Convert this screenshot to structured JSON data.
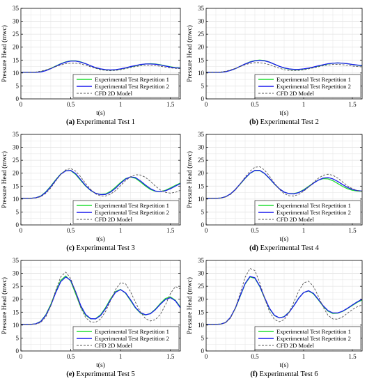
{
  "figure": {
    "legend_labels": [
      "Experimental Test Repetition 1",
      "Experimental Test Repetition 2",
      "CFD 2D Model"
    ],
    "colors": {
      "rep1": "#22dd33",
      "rep2": "#1a1aee",
      "cfd": "#555555",
      "grid": "#e3e3e3",
      "axis": "#000000"
    }
  },
  "chart_data": [
    {
      "type": "line",
      "caption_letter": "(a)",
      "caption_text": "Experimental Test 1",
      "xlabel": "t(s)",
      "ylabel": "Pressure Head (mwc)",
      "xlim": [
        0,
        1.6
      ],
      "ylim": [
        0,
        35
      ],
      "xticks": [
        0,
        0.5,
        1,
        1.5
      ],
      "yticks": [
        0,
        5,
        10,
        15,
        20,
        25,
        30,
        35
      ],
      "grid": true,
      "legend_position": "lower-right",
      "x": [
        0,
        0.05,
        0.1,
        0.15,
        0.2,
        0.25,
        0.3,
        0.35,
        0.4,
        0.45,
        0.5,
        0.55,
        0.6,
        0.65,
        0.7,
        0.75,
        0.8,
        0.85,
        0.9,
        0.95,
        1.0,
        1.05,
        1.1,
        1.15,
        1.2,
        1.25,
        1.3,
        1.35,
        1.4,
        1.45,
        1.5,
        1.55,
        1.6
      ],
      "series": [
        {
          "name": "Experimental Test Repetition 1",
          "values": [
            10.3,
            10.3,
            10.3,
            10.3,
            10.5,
            11.0,
            11.8,
            12.7,
            13.6,
            14.3,
            14.7,
            14.7,
            14.3,
            13.6,
            12.8,
            12.0,
            11.5,
            11.2,
            11.1,
            11.2,
            11.5,
            11.9,
            12.4,
            12.8,
            13.2,
            13.5,
            13.6,
            13.5,
            13.2,
            12.8,
            12.4,
            12.1,
            12.0
          ]
        },
        {
          "name": "Experimental Test Repetition 2",
          "values": [
            10.3,
            10.3,
            10.3,
            10.3,
            10.4,
            10.9,
            11.7,
            12.6,
            13.5,
            14.2,
            14.6,
            14.6,
            14.2,
            13.6,
            12.8,
            12.1,
            11.6,
            11.3,
            11.2,
            11.3,
            11.6,
            12.0,
            12.5,
            12.9,
            13.3,
            13.5,
            13.5,
            13.4,
            13.1,
            12.7,
            12.3,
            12.0,
            11.9
          ]
        },
        {
          "name": "CFD 2D Model",
          "values": [
            10.3,
            10.3,
            10.3,
            10.4,
            10.7,
            11.2,
            11.8,
            12.5,
            13.1,
            13.6,
            13.8,
            13.8,
            13.5,
            13.0,
            12.4,
            11.8,
            11.3,
            11.0,
            10.9,
            11.0,
            11.3,
            11.7,
            12.1,
            12.5,
            12.8,
            13.0,
            13.0,
            12.9,
            12.6,
            12.3,
            12.0,
            11.8,
            11.7
          ]
        }
      ]
    },
    {
      "type": "line",
      "caption_letter": "(b)",
      "caption_text": "Experimental Test 2",
      "xlabel": "t(s)",
      "ylabel": "Pressure Head (mwc)",
      "xlim": [
        0,
        1.6
      ],
      "ylim": [
        0,
        35
      ],
      "xticks": [
        0,
        0.5,
        1,
        1.5
      ],
      "yticks": [
        0,
        5,
        10,
        15,
        20,
        25,
        30,
        35
      ],
      "grid": true,
      "legend_position": "lower-right",
      "x": [
        0,
        0.05,
        0.1,
        0.15,
        0.2,
        0.25,
        0.3,
        0.35,
        0.4,
        0.45,
        0.5,
        0.55,
        0.6,
        0.65,
        0.7,
        0.75,
        0.8,
        0.85,
        0.9,
        0.95,
        1.0,
        1.05,
        1.1,
        1.15,
        1.2,
        1.25,
        1.3,
        1.35,
        1.4,
        1.45,
        1.5,
        1.55,
        1.6
      ],
      "series": [
        {
          "name": "Experimental Test Repetition 1",
          "values": [
            10.3,
            10.3,
            10.3,
            10.3,
            10.5,
            11.0,
            11.7,
            12.6,
            13.5,
            14.3,
            14.8,
            15.0,
            14.8,
            14.2,
            13.4,
            12.6,
            11.9,
            11.5,
            11.3,
            11.3,
            11.5,
            11.8,
            12.2,
            12.7,
            13.1,
            13.5,
            13.8,
            13.9,
            13.8,
            13.6,
            13.3,
            13.0,
            12.8
          ]
        },
        {
          "name": "Experimental Test Repetition 2",
          "values": [
            10.3,
            10.3,
            10.3,
            10.3,
            10.5,
            11.0,
            11.7,
            12.6,
            13.5,
            14.2,
            14.7,
            14.9,
            14.7,
            14.2,
            13.4,
            12.6,
            12.0,
            11.6,
            11.4,
            11.4,
            11.6,
            11.9,
            12.3,
            12.8,
            13.2,
            13.6,
            13.8,
            13.9,
            13.8,
            13.6,
            13.3,
            13.1,
            12.9
          ]
        },
        {
          "name": "CFD 2D Model",
          "values": [
            10.3,
            10.3,
            10.3,
            10.4,
            10.7,
            11.2,
            11.8,
            12.5,
            13.2,
            13.7,
            14.0,
            14.0,
            13.7,
            13.2,
            12.5,
            11.9,
            11.3,
            11.0,
            10.9,
            11.0,
            11.2,
            11.6,
            12.0,
            12.4,
            12.8,
            13.1,
            13.3,
            13.3,
            13.2,
            13.0,
            12.7,
            12.5,
            12.4
          ]
        }
      ]
    },
    {
      "type": "line",
      "caption_letter": "(c)",
      "caption_text": "Experimental Test 3",
      "xlabel": "t(s)",
      "ylabel": "Pressure Head (mwc)",
      "xlim": [
        0,
        1.6
      ],
      "ylim": [
        0,
        35
      ],
      "xticks": [
        0,
        0.5,
        1,
        1.5
      ],
      "yticks": [
        0,
        5,
        10,
        15,
        20,
        25,
        30,
        35
      ],
      "grid": true,
      "legend_position": "lower-right",
      "x": [
        0,
        0.05,
        0.1,
        0.15,
        0.2,
        0.25,
        0.3,
        0.35,
        0.4,
        0.45,
        0.5,
        0.55,
        0.6,
        0.65,
        0.7,
        0.75,
        0.8,
        0.85,
        0.9,
        0.95,
        1.0,
        1.05,
        1.1,
        1.15,
        1.2,
        1.25,
        1.3,
        1.35,
        1.4,
        1.45,
        1.5,
        1.55,
        1.6
      ],
      "series": [
        {
          "name": "Experimental Test Repetition 1",
          "values": [
            10.3,
            10.3,
            10.3,
            10.5,
            11.2,
            12.8,
            15.0,
            17.5,
            19.7,
            21.0,
            21.0,
            19.5,
            17.2,
            15.0,
            13.3,
            12.2,
            11.8,
            12.0,
            13.0,
            14.6,
            16.4,
            17.9,
            18.5,
            18.0,
            16.6,
            15.0,
            13.7,
            13.0,
            12.9,
            13.4,
            14.3,
            15.3,
            16.2
          ]
        },
        {
          "name": "Experimental Test Repetition 2",
          "values": [
            10.3,
            10.3,
            10.3,
            10.5,
            11.1,
            12.6,
            14.8,
            17.3,
            19.6,
            20.9,
            21.1,
            19.8,
            17.5,
            15.2,
            13.4,
            12.2,
            11.7,
            11.8,
            12.7,
            14.2,
            16.1,
            17.7,
            18.6,
            18.3,
            17.0,
            15.4,
            14.0,
            13.1,
            12.9,
            13.2,
            14.0,
            15.0,
            16.0
          ]
        },
        {
          "name": "CFD 2D Model",
          "values": [
            10.3,
            10.3,
            10.3,
            10.4,
            10.9,
            12.2,
            14.3,
            17.0,
            19.6,
            21.3,
            21.8,
            20.8,
            18.6,
            16.0,
            13.7,
            12.0,
            11.2,
            11.2,
            11.9,
            13.3,
            15.2,
            17.1,
            18.6,
            19.4,
            19.3,
            18.4,
            16.8,
            15.0,
            13.5,
            12.6,
            12.3,
            12.6,
            13.4
          ]
        }
      ]
    },
    {
      "type": "line",
      "caption_letter": "(d)",
      "caption_text": "Experimental Test 4",
      "xlabel": "t(s)",
      "ylabel": "Pressure Head (mwc)",
      "xlim": [
        0,
        1.6
      ],
      "ylim": [
        0,
        35
      ],
      "xticks": [
        0,
        0.5,
        1,
        1.5
      ],
      "yticks": [
        0,
        5,
        10,
        15,
        20,
        25,
        30,
        35
      ],
      "grid": true,
      "legend_position": "lower-right",
      "x": [
        0,
        0.05,
        0.1,
        0.15,
        0.2,
        0.25,
        0.3,
        0.35,
        0.4,
        0.45,
        0.5,
        0.55,
        0.6,
        0.65,
        0.7,
        0.75,
        0.8,
        0.85,
        0.9,
        0.95,
        1.0,
        1.05,
        1.1,
        1.15,
        1.2,
        1.25,
        1.3,
        1.35,
        1.4,
        1.45,
        1.5,
        1.55,
        1.6
      ],
      "series": [
        {
          "name": "Experimental Test Repetition 1",
          "values": [
            10.3,
            10.3,
            10.3,
            10.4,
            10.9,
            12.0,
            13.7,
            15.8,
            18.0,
            19.9,
            21.0,
            21.0,
            19.8,
            17.9,
            15.8,
            14.0,
            12.7,
            12.1,
            12.1,
            12.6,
            13.6,
            14.9,
            16.2,
            17.3,
            17.9,
            17.8,
            17.1,
            16.0,
            14.9,
            14.0,
            13.4,
            13.1,
            13.0
          ]
        },
        {
          "name": "Experimental Test Repetition 2",
          "values": [
            10.3,
            10.3,
            10.3,
            10.4,
            10.9,
            12.0,
            13.7,
            15.9,
            18.1,
            20.0,
            21.1,
            21.1,
            19.9,
            18.0,
            15.9,
            14.0,
            12.7,
            12.1,
            12.0,
            12.5,
            13.4,
            14.7,
            16.1,
            17.3,
            18.1,
            18.3,
            17.8,
            16.8,
            15.6,
            14.5,
            13.7,
            13.3,
            13.1
          ]
        },
        {
          "name": "CFD 2D Model",
          "values": [
            10.3,
            10.3,
            10.3,
            10.4,
            10.8,
            11.8,
            13.5,
            15.9,
            18.5,
            20.8,
            22.3,
            22.5,
            21.2,
            18.9,
            16.2,
            13.8,
            12.1,
            11.3,
            11.2,
            11.8,
            13.0,
            14.6,
            16.4,
            18.0,
            19.2,
            19.6,
            19.2,
            18.1,
            16.6,
            15.1,
            14.0,
            13.3,
            13.0
          ]
        }
      ]
    },
    {
      "type": "line",
      "caption_letter": "(e)",
      "caption_text": "Experimental Test 5",
      "xlabel": "t(s)",
      "ylabel": "Pressure Head (mwc)",
      "xlim": [
        0,
        1.6
      ],
      "ylim": [
        0,
        35
      ],
      "xticks": [
        0,
        0.5,
        1,
        1.5
      ],
      "yticks": [
        0,
        5,
        10,
        15,
        20,
        25,
        30,
        35
      ],
      "grid": true,
      "legend_position": "lower-right",
      "x": [
        0,
        0.05,
        0.1,
        0.15,
        0.2,
        0.25,
        0.3,
        0.35,
        0.4,
        0.45,
        0.5,
        0.55,
        0.6,
        0.65,
        0.7,
        0.75,
        0.8,
        0.85,
        0.9,
        0.95,
        1.0,
        1.05,
        1.1,
        1.15,
        1.2,
        1.25,
        1.3,
        1.35,
        1.4,
        1.45,
        1.5,
        1.55,
        1.6
      ],
      "series": [
        {
          "name": "Experimental Test Repetition 1",
          "values": [
            10.3,
            10.3,
            10.3,
            10.5,
            11.5,
            14.0,
            18.0,
            23.0,
            27.3,
            29.0,
            27.0,
            22.0,
            17.0,
            13.8,
            12.4,
            12.5,
            14.0,
            16.8,
            20.2,
            23.0,
            23.8,
            22.3,
            19.5,
            16.6,
            14.6,
            13.9,
            14.5,
            16.2,
            18.4,
            20.3,
            20.9,
            19.6,
            17.0
          ]
        },
        {
          "name": "Experimental Test Repetition 2",
          "values": [
            10.3,
            10.3,
            10.3,
            10.5,
            11.4,
            13.8,
            17.6,
            22.6,
            26.8,
            28.6,
            27.3,
            22.8,
            17.6,
            14.1,
            12.5,
            12.4,
            13.7,
            16.4,
            19.8,
            22.7,
            23.7,
            22.5,
            19.8,
            16.8,
            14.8,
            14.0,
            14.4,
            16.0,
            18.1,
            19.9,
            20.6,
            19.4,
            16.7
          ]
        },
        {
          "name": "CFD 2D Model",
          "values": [
            10.3,
            10.3,
            10.3,
            10.4,
            11.0,
            13.2,
            17.5,
            23.5,
            28.7,
            30.5,
            28.0,
            22.5,
            16.8,
            12.9,
            11.2,
            11.1,
            12.4,
            15.3,
            19.5,
            23.8,
            26.4,
            26.0,
            22.9,
            18.8,
            15.0,
            12.5,
            11.6,
            12.1,
            14.2,
            17.8,
            22.2,
            24.9,
            24.0
          ]
        }
      ]
    },
    {
      "type": "line",
      "caption_letter": "(f)",
      "caption_text": "Experimental Test 6",
      "xlabel": "t(s)",
      "ylabel": "Pressure Head (mwc)",
      "xlim": [
        0,
        1.6
      ],
      "ylim": [
        0,
        35
      ],
      "xticks": [
        0,
        0.5,
        1,
        1.5
      ],
      "yticks": [
        0,
        5,
        10,
        15,
        20,
        25,
        30,
        35
      ],
      "grid": true,
      "legend_position": "lower-right",
      "x": [
        0,
        0.05,
        0.1,
        0.15,
        0.2,
        0.25,
        0.3,
        0.35,
        0.4,
        0.45,
        0.5,
        0.55,
        0.6,
        0.65,
        0.7,
        0.75,
        0.8,
        0.85,
        0.9,
        0.95,
        1.0,
        1.05,
        1.1,
        1.15,
        1.2,
        1.25,
        1.3,
        1.35,
        1.4,
        1.45,
        1.5,
        1.55,
        1.6
      ],
      "series": [
        {
          "name": "Experimental Test Repetition 1",
          "values": [
            10.3,
            10.3,
            10.3,
            10.4,
            11.0,
            13.0,
            16.5,
            21.2,
            25.9,
            28.6,
            28.1,
            24.9,
            20.4,
            16.3,
            13.7,
            12.8,
            13.3,
            15.0,
            17.6,
            20.5,
            22.6,
            23.2,
            22.1,
            19.8,
            17.3,
            15.4,
            14.5,
            14.6,
            15.3,
            16.4,
            17.6,
            18.8,
            19.7
          ]
        },
        {
          "name": "Experimental Test Repetition 2",
          "values": [
            10.3,
            10.3,
            10.3,
            10.4,
            11.0,
            13.0,
            16.6,
            21.4,
            26.1,
            28.8,
            28.3,
            25.1,
            20.6,
            16.5,
            13.8,
            12.8,
            13.2,
            14.9,
            17.5,
            20.4,
            22.6,
            23.3,
            22.3,
            20.0,
            17.5,
            15.6,
            14.7,
            14.7,
            15.4,
            16.5,
            17.8,
            19.0,
            20.0
          ]
        },
        {
          "name": "CFD 2D Model",
          "values": [
            10.3,
            10.3,
            10.3,
            10.4,
            10.9,
            12.7,
            16.6,
            22.4,
            28.5,
            31.9,
            31.1,
            26.4,
            20.3,
            15.2,
            12.2,
            11.3,
            12.1,
            14.8,
            18.9,
            23.2,
            26.3,
            27.0,
            25.0,
            21.2,
            17.0,
            13.8,
            12.4,
            12.3,
            13.2,
            14.6,
            16.0,
            17.1,
            17.8
          ]
        }
      ]
    }
  ]
}
